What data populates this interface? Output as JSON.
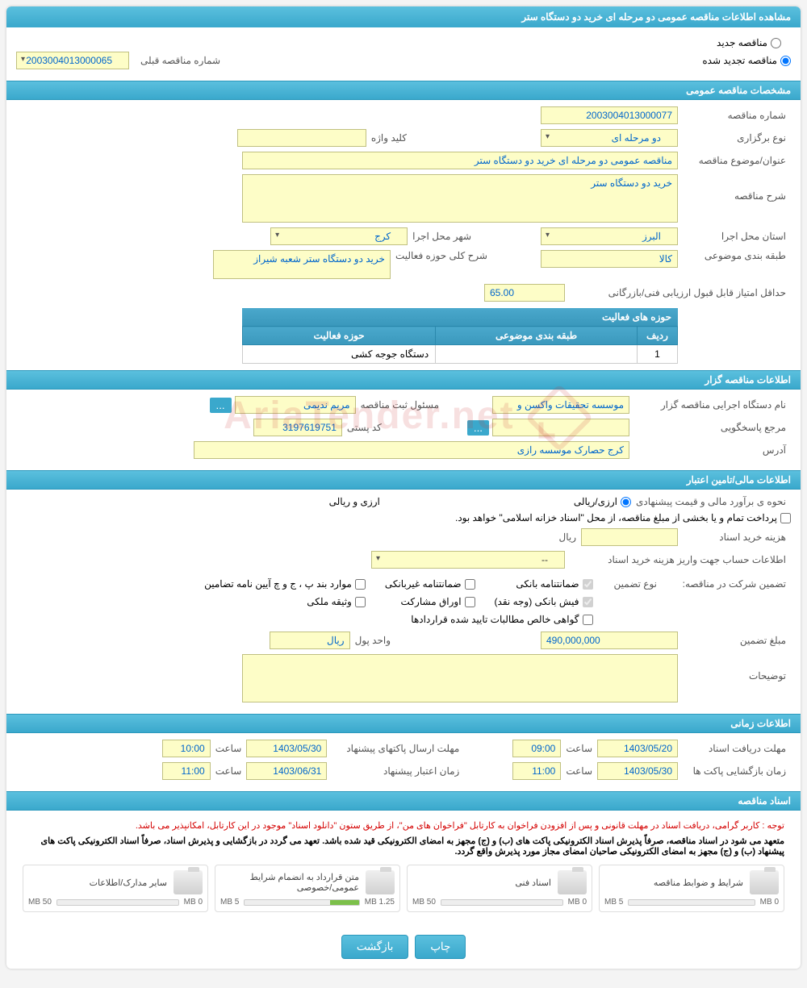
{
  "header": {
    "title": "مشاهده اطلاعات مناقصه عمومی دو مرحله ای خرید دو دستگاه ستر"
  },
  "tender_status": {
    "new_label": "مناقصه جدید",
    "renewed_label": "مناقصه تجدید شده",
    "prev_number_label": "شماره مناقصه قبلی",
    "prev_number": "2003004013000065"
  },
  "sections": {
    "general": "مشخصات مناقصه عمومی",
    "organizer": "اطلاعات مناقصه گزار",
    "financial": "اطلاعات مالی/تامین اعتبار",
    "timing": "اطلاعات زمانی",
    "documents": "اسناد مناقصه"
  },
  "general": {
    "number_label": "شماره مناقصه",
    "number": "2003004013000077",
    "type_label": "نوع برگزاری",
    "type": "دو مرحله ای",
    "keyword_label": "کلید واژه",
    "keyword": "",
    "subject_label": "عنوان/موضوع مناقصه",
    "subject": "مناقصه عمومی دو مرحله ای خرید دو دستگاه ستر",
    "desc_label": "شرح مناقصه",
    "desc": "خرید دو دستگاه ستر",
    "province_label": "استان محل اجرا",
    "province": "البرز",
    "city_label": "شهر محل اجرا",
    "city": "کرج",
    "category_label": "طبقه بندی موضوعی",
    "category": "کالا",
    "activity_desc_label": "شرح کلی حوزه فعالیت",
    "activity_desc": "خرید دو دستگاه ستر شعبه شیراز",
    "min_score_label": "حداقل امتیاز قابل قبول ارزیابی فنی/بازرگانی",
    "min_score": "65.00",
    "activity_table": {
      "title": "حوزه های فعالیت",
      "col_row": "ردیف",
      "col_category": "طبقه بندی موضوعی",
      "col_activity": "حوزه فعالیت",
      "rows": [
        {
          "n": "1",
          "category": "",
          "activity": "دستگاه جوجه کشی"
        }
      ]
    }
  },
  "organizer": {
    "org_label": "نام دستگاه اجرایی مناقصه گزار",
    "org": "موسسه تحقیقات واکسن و",
    "registrar_label": "مسئول ثبت مناقصه",
    "registrar": "مریم ندیمی",
    "responder_label": "مرجع پاسخگویی",
    "responder": "",
    "postal_label": "کد پستی",
    "postal": "3197619751",
    "address_label": "آدرس",
    "address": "کرج حصارک موسسه رازی"
  },
  "financial": {
    "estimate_label": "نحوه ی برآورد مالی و قیمت پیشنهادی",
    "currency_mixed": "ارزی/ریالی",
    "currency_both": "ارزی و ریالی",
    "islamic_note": "پرداخت تمام و یا بخشی از مبلغ مناقصه، از محل \"اسناد خزانه اسلامی\" خواهد بود.",
    "doc_cost_label": "هزینه خرید اسناد",
    "rial": "ریال",
    "account_label": "اطلاعات حساب جهت واریز هزینه خرید اسناد",
    "account": "--",
    "guarantee_label": "تضمین شرکت در مناقصه:",
    "guarantee_type_label": "نوع تضمین",
    "guarantees": {
      "bank": "ضمانتنامه بانکی",
      "nonbank": "ضمانتنامه غیربانکی",
      "terms": "موارد بند پ ، ج و چ آیین نامه تضامین",
      "cash": "فیش بانکی (وجه نقد)",
      "bonds": "اوراق مشارکت",
      "property": "وثیقه ملکی",
      "receivables": "گواهی خالص مطالبات تایید شده قراردادها"
    },
    "amount_label": "مبلغ تضمین",
    "amount": "490,000,000",
    "unit_label": "واحد پول",
    "unit": "ریال",
    "notes_label": "توضیحات",
    "notes": ""
  },
  "timing": {
    "receive_label": "مهلت دریافت اسناد",
    "receive_date": "1403/05/20",
    "receive_time_label": "ساعت",
    "receive_time": "09:00",
    "submit_label": "مهلت ارسال پاکتهای پیشنهاد",
    "submit_date": "1403/05/30",
    "submit_time": "10:00",
    "open_label": "زمان بازگشایی پاکت ها",
    "open_date": "1403/05/30",
    "open_time": "11:00",
    "validity_label": "زمان اعتبار پیشنهاد",
    "validity_date": "1403/06/31",
    "validity_time": "11:00"
  },
  "documents": {
    "warning": "توجه : کاربر گرامی، دریافت اسناد در مهلت قانونی و پس از افزودن فراخوان به کارتابل \"فراخوان های من\"، از طریق ستون \"دانلود اسناد\" موجود در این کارتابل، امکانپذیر می باشد.",
    "note1": "متعهد می شود در اسناد مناقصه، صرفاً پذیرش اسناد الکترونیکی پاکت های (ب) و (ج) مجهز به امضای الکترونیکی قید شده باشد. تعهد می گردد در بازگشایی و پذیرش اسناد، صرفاً اسناد الکترونیکی پاکت های پیشنهاد (ب) و (ج) مجهز به امضای الکترونیکی صاحبان امضای مجاز مورد پذیرش واقع گردد.",
    "files": [
      {
        "title": "شرایط و ضوابط مناقصه",
        "used": "0 MB",
        "max": "5 MB",
        "pct": 0
      },
      {
        "title": "اسناد فنی",
        "used": "0 MB",
        "max": "50 MB",
        "pct": 0
      },
      {
        "title": "متن قرارداد به انضمام شرایط عمومی/خصوصی",
        "used": "1.25 MB",
        "max": "5 MB",
        "pct": 25
      },
      {
        "title": "سایر مدارک/اطلاعات",
        "used": "0 MB",
        "max": "50 MB",
        "pct": 0
      }
    ]
  },
  "buttons": {
    "print": "چاپ",
    "back": "بازگشت",
    "dots": "..."
  },
  "watermark": "AriaTender.net"
}
